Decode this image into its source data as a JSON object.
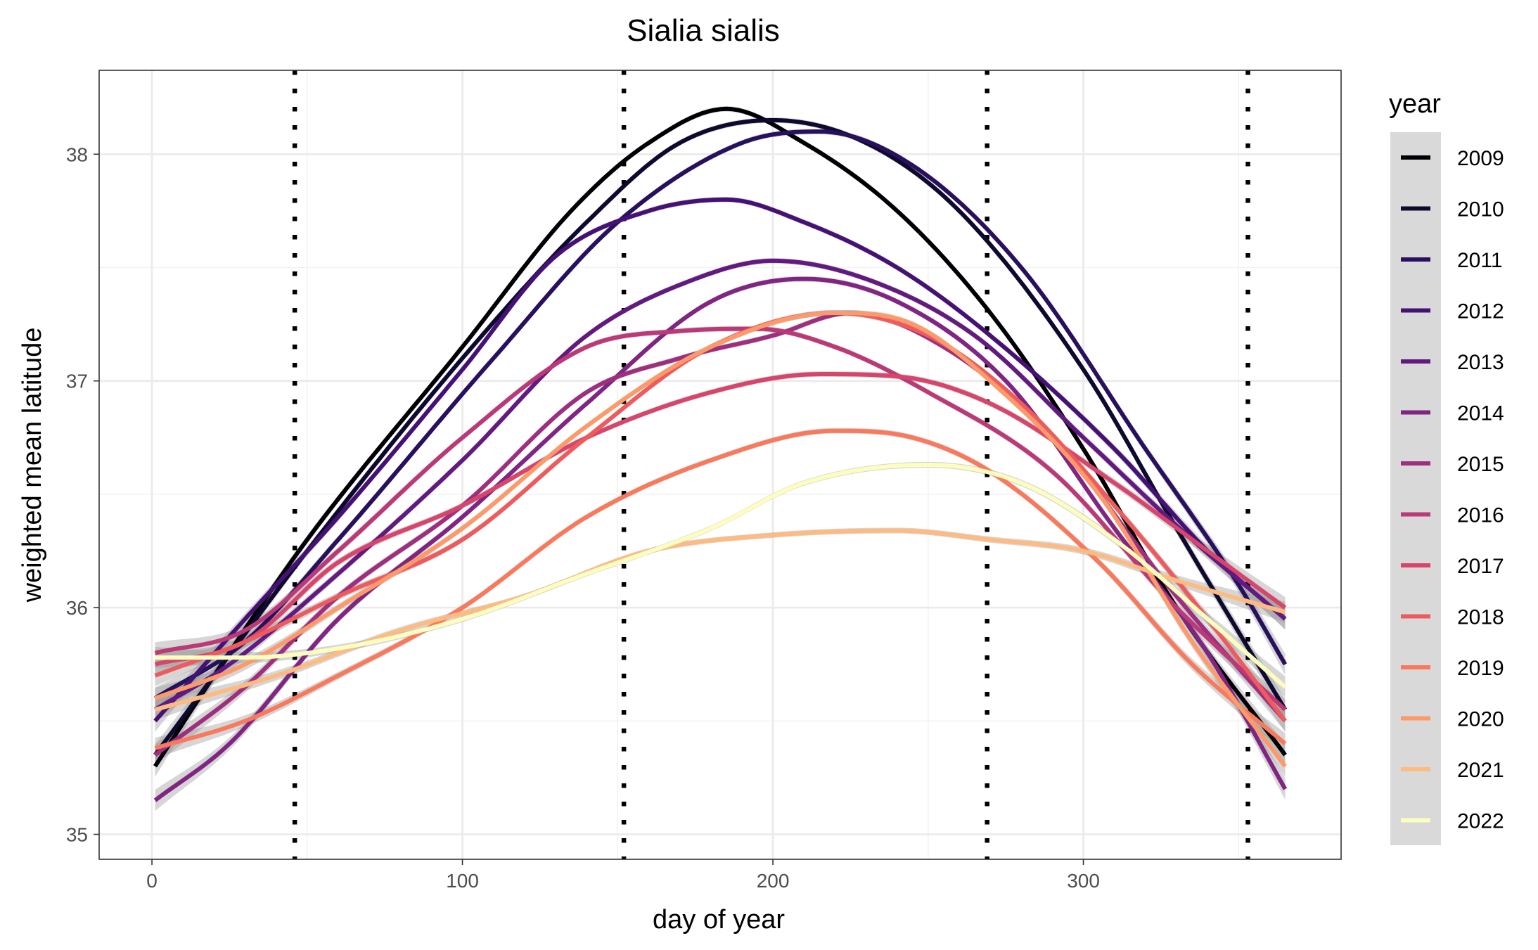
{
  "chart_data": {
    "type": "line",
    "title": "Sialia sialis",
    "xlabel": "day of year",
    "ylabel": "weighted mean latitude",
    "xlim": [
      -17,
      383
    ],
    "ylim": [
      34.89,
      38.37
    ],
    "x_ticks": [
      0,
      100,
      200,
      300
    ],
    "y_ticks": [
      35,
      36,
      37,
      38
    ],
    "grid": true,
    "confidence_band": true,
    "legend_position": "right",
    "legend_title": "year",
    "vlines": [
      46,
      152,
      269,
      353
    ],
    "vline_style": "dotted",
    "series": [
      {
        "name": "2009",
        "color": "#000004",
        "points": [
          [
            1,
            35.3
          ],
          [
            20,
            35.7
          ],
          [
            50,
            36.3
          ],
          [
            100,
            37.15
          ],
          [
            135,
            37.75
          ],
          [
            160,
            38.05
          ],
          [
            185,
            38.2
          ],
          [
            210,
            38.05
          ],
          [
            240,
            37.75
          ],
          [
            270,
            37.3
          ],
          [
            300,
            36.7
          ],
          [
            330,
            36.0
          ],
          [
            365,
            35.35
          ]
        ]
      },
      {
        "name": "2010",
        "color": "#0E0A2F",
        "points": [
          [
            1,
            35.35
          ],
          [
            20,
            35.7
          ],
          [
            50,
            36.25
          ],
          [
            100,
            37.1
          ],
          [
            140,
            37.7
          ],
          [
            170,
            38.05
          ],
          [
            200,
            38.15
          ],
          [
            230,
            38.05
          ],
          [
            260,
            37.75
          ],
          [
            300,
            37.05
          ],
          [
            330,
            36.35
          ],
          [
            365,
            35.55
          ]
        ]
      },
      {
        "name": "2011",
        "color": "#27105E",
        "points": [
          [
            1,
            35.6
          ],
          [
            30,
            35.85
          ],
          [
            60,
            36.3
          ],
          [
            110,
            37.1
          ],
          [
            150,
            37.7
          ],
          [
            190,
            38.05
          ],
          [
            215,
            38.1
          ],
          [
            245,
            37.95
          ],
          [
            280,
            37.5
          ],
          [
            320,
            36.7
          ],
          [
            350,
            36.1
          ],
          [
            365,
            35.75
          ]
        ]
      },
      {
        "name": "2012",
        "color": "#461175",
        "points": [
          [
            1,
            35.5
          ],
          [
            30,
            35.95
          ],
          [
            60,
            36.4
          ],
          [
            100,
            37.05
          ],
          [
            130,
            37.55
          ],
          [
            160,
            37.75
          ],
          [
            185,
            37.8
          ],
          [
            210,
            37.7
          ],
          [
            240,
            37.5
          ],
          [
            270,
            37.2
          ],
          [
            310,
            36.7
          ],
          [
            340,
            36.25
          ],
          [
            365,
            35.95
          ]
        ]
      },
      {
        "name": "2013",
        "color": "#621A80",
        "points": [
          [
            1,
            35.55
          ],
          [
            25,
            35.75
          ],
          [
            60,
            36.15
          ],
          [
            100,
            36.65
          ],
          [
            140,
            37.2
          ],
          [
            175,
            37.45
          ],
          [
            200,
            37.53
          ],
          [
            230,
            37.45
          ],
          [
            265,
            37.2
          ],
          [
            300,
            36.75
          ],
          [
            335,
            36.3
          ],
          [
            365,
            35.95
          ]
        ]
      },
      {
        "name": "2014",
        "color": "#802582",
        "points": [
          [
            1,
            35.15
          ],
          [
            25,
            35.4
          ],
          [
            60,
            35.95
          ],
          [
            100,
            36.4
          ],
          [
            140,
            36.9
          ],
          [
            180,
            37.35
          ],
          [
            210,
            37.45
          ],
          [
            240,
            37.35
          ],
          [
            275,
            37.0
          ],
          [
            310,
            36.35
          ],
          [
            340,
            35.8
          ],
          [
            365,
            35.2
          ]
        ]
      },
      {
        "name": "2015",
        "color": "#9E2F7F",
        "points": [
          [
            1,
            35.35
          ],
          [
            30,
            35.65
          ],
          [
            60,
            36.05
          ],
          [
            100,
            36.45
          ],
          [
            140,
            36.95
          ],
          [
            170,
            37.1
          ],
          [
            200,
            37.2
          ],
          [
            225,
            37.3
          ],
          [
            255,
            37.15
          ],
          [
            290,
            36.75
          ],
          [
            330,
            36.05
          ],
          [
            365,
            35.5
          ]
        ]
      },
      {
        "name": "2016",
        "color": "#BC3977",
        "points": [
          [
            1,
            35.8
          ],
          [
            30,
            35.9
          ],
          [
            60,
            36.25
          ],
          [
            100,
            36.75
          ],
          [
            140,
            37.15
          ],
          [
            170,
            37.22
          ],
          [
            195,
            37.23
          ],
          [
            220,
            37.15
          ],
          [
            250,
            36.95
          ],
          [
            290,
            36.6
          ],
          [
            330,
            36.0
          ],
          [
            365,
            35.55
          ]
        ]
      },
      {
        "name": "2017",
        "color": "#D8456C",
        "points": [
          [
            1,
            35.75
          ],
          [
            30,
            35.85
          ],
          [
            60,
            36.2
          ],
          [
            100,
            36.45
          ],
          [
            140,
            36.75
          ],
          [
            180,
            36.95
          ],
          [
            215,
            37.03
          ],
          [
            240,
            37.02
          ],
          [
            270,
            36.9
          ],
          [
            310,
            36.55
          ],
          [
            340,
            36.25
          ],
          [
            365,
            36.0
          ]
        ]
      },
      {
        "name": "2018",
        "color": "#EE5B5E",
        "points": [
          [
            1,
            35.7
          ],
          [
            30,
            35.85
          ],
          [
            60,
            36.05
          ],
          [
            100,
            36.3
          ],
          [
            140,
            36.75
          ],
          [
            180,
            37.15
          ],
          [
            220,
            37.3
          ],
          [
            250,
            37.2
          ],
          [
            280,
            36.9
          ],
          [
            310,
            36.45
          ],
          [
            340,
            35.95
          ],
          [
            365,
            35.5
          ]
        ]
      },
      {
        "name": "2019",
        "color": "#F9795D",
        "points": [
          [
            1,
            35.38
          ],
          [
            30,
            35.5
          ],
          [
            60,
            35.7
          ],
          [
            100,
            36.0
          ],
          [
            140,
            36.4
          ],
          [
            180,
            36.65
          ],
          [
            220,
            36.78
          ],
          [
            245,
            36.75
          ],
          [
            270,
            36.6
          ],
          [
            305,
            36.2
          ],
          [
            335,
            35.75
          ],
          [
            365,
            35.4
          ]
        ]
      },
      {
        "name": "2020",
        "color": "#FD9A6A",
        "points": [
          [
            1,
            35.6
          ],
          [
            30,
            35.75
          ],
          [
            60,
            36.0
          ],
          [
            100,
            36.35
          ],
          [
            140,
            36.8
          ],
          [
            180,
            37.15
          ],
          [
            220,
            37.3
          ],
          [
            245,
            37.25
          ],
          [
            270,
            37.0
          ],
          [
            305,
            36.5
          ],
          [
            335,
            35.85
          ],
          [
            365,
            35.3
          ]
        ]
      },
      {
        "name": "2021",
        "color": "#FEBB81",
        "points": [
          [
            1,
            35.55
          ],
          [
            40,
            35.7
          ],
          [
            80,
            35.9
          ],
          [
            120,
            36.05
          ],
          [
            160,
            36.25
          ],
          [
            200,
            36.32
          ],
          [
            240,
            36.34
          ],
          [
            270,
            36.3
          ],
          [
            300,
            36.25
          ],
          [
            330,
            36.12
          ],
          [
            365,
            35.98
          ]
        ]
      },
      {
        "name": "2022",
        "color": "#FCFDBF",
        "points": [
          [
            1,
            35.78
          ],
          [
            30,
            35.78
          ],
          [
            60,
            35.82
          ],
          [
            100,
            35.95
          ],
          [
            140,
            36.15
          ],
          [
            180,
            36.35
          ],
          [
            210,
            36.55
          ],
          [
            250,
            36.63
          ],
          [
            280,
            36.55
          ],
          [
            310,
            36.3
          ],
          [
            340,
            35.95
          ],
          [
            365,
            35.65
          ]
        ]
      }
    ]
  }
}
